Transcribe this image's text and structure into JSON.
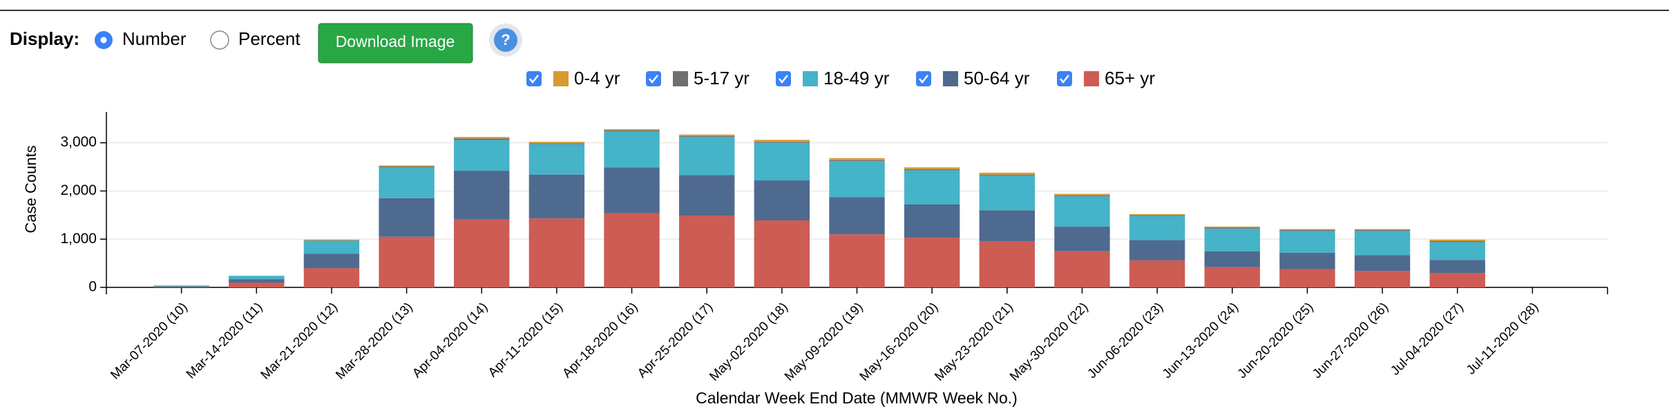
{
  "controls": {
    "display_label": "Display:",
    "options": [
      "Number",
      "Percent"
    ],
    "button": "Download Image",
    "help": "?"
  },
  "chart_data": {
    "type": "stacked-bar",
    "y_label": "Case Counts",
    "x_label": "Calendar Week End Date (MMWR Week No.)",
    "categories": [
      "Mar-07-2020 (10)",
      "Mar-14-2020 (11)",
      "Mar-21-2020 (12)",
      "Mar-28-2020 (13)",
      "Apr-04-2020 (14)",
      "Apr-11-2020 (15)",
      "Apr-18-2020 (16)",
      "Apr-25-2020 (17)",
      "May-02-2020 (18)",
      "May-09-2020 (19)",
      "May-16-2020 (20)",
      "May-23-2020 (21)",
      "May-30-2020 (22)",
      "Jun-06-2020 (23)",
      "Jun-13-2020 (24)",
      "Jun-20-2020 (25)",
      "Jun-27-2020 (26)",
      "Jul-04-2020 (27)",
      "Jul-11-2020 (28)"
    ],
    "series": [
      {
        "name": "0-4 yr",
        "color": "#d89b2f",
        "values": [
          0,
          0,
          10,
          20,
          30,
          30,
          20,
          30,
          40,
          40,
          40,
          40,
          30,
          20,
          20,
          20,
          20,
          30,
          0
        ]
      },
      {
        "name": "5-17 yr",
        "color": "#6f6f6f",
        "values": [
          0,
          0,
          10,
          20,
          30,
          20,
          20,
          20,
          20,
          20,
          20,
          20,
          20,
          20,
          20,
          20,
          20,
          20,
          0
        ]
      },
      {
        "name": "18-49 yr",
        "color": "#45b3c8",
        "values": [
          20,
          70,
          270,
          640,
          640,
          630,
          750,
          790,
          780,
          750,
          710,
          720,
          630,
          500,
          470,
          450,
          500,
          370,
          0
        ]
      },
      {
        "name": "50-64 yr",
        "color": "#4f6a8f",
        "values": [
          10,
          70,
          300,
          800,
          1010,
          910,
          950,
          840,
          830,
          770,
          690,
          650,
          510,
          420,
          330,
          340,
          330,
          270,
          0
        ]
      },
      {
        "name": "65+ yr",
        "color": "#cd5c55",
        "values": [
          10,
          100,
          400,
          1050,
          1410,
          1430,
          1540,
          1490,
          1390,
          1100,
          1030,
          950,
          750,
          560,
          420,
          380,
          340,
          300,
          0
        ]
      }
    ],
    "ylim": [
      0,
      3640
    ],
    "yticks": [
      0,
      {
        "value": 1000,
        "label": "1,000"
      },
      {
        "value": 2000,
        "label": "2,000"
      },
      {
        "value": 3000,
        "label": "3,000"
      }
    ],
    "grid": true
  }
}
